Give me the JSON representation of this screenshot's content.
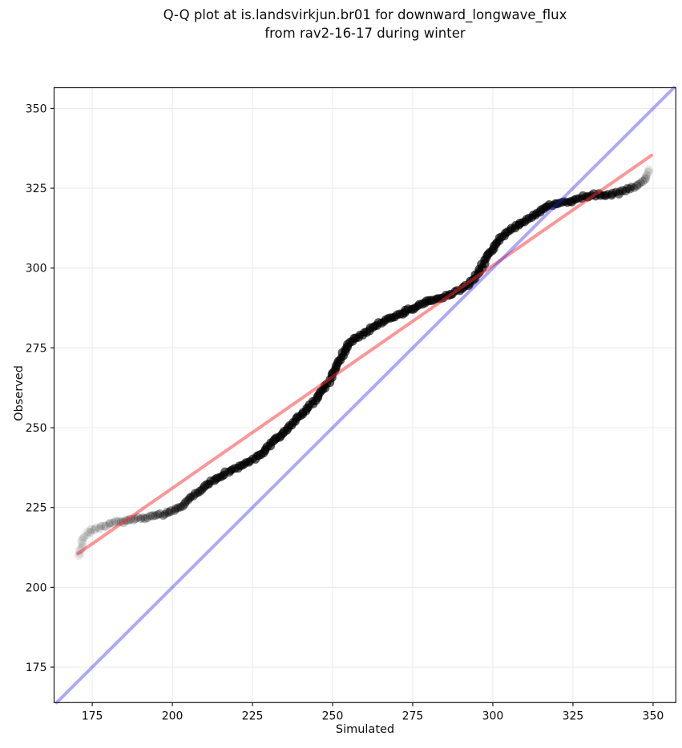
{
  "figure": {
    "title_line1": "Q-Q plot at is.landsvirkjun.br01 for downward_longwave_flux",
    "title_line2": "from rav2-16-17 during winter"
  },
  "chart_data": {
    "type": "scatter",
    "title": "Q-Q plot at is.landsvirkjun.br01 for downward_longwave_flux from rav2-16-17 during winter",
    "xlabel": "Simulated",
    "ylabel": "Observed",
    "xlim": [
      163.1,
      357.1
    ],
    "ylim": [
      163.9,
      356.5
    ],
    "xticks": [
      175,
      200,
      225,
      250,
      275,
      300,
      325,
      350
    ],
    "yticks": [
      175,
      200,
      225,
      250,
      275,
      300,
      325,
      350
    ],
    "grid": true,
    "legend": "none",
    "series": [
      {
        "name": "quantile-points",
        "type": "scatter",
        "marker": "circle",
        "color": "#000000",
        "alpha_profile": [
          [
            0,
            0.07
          ],
          [
            0.03,
            0.1
          ],
          [
            0.07,
            0.16
          ],
          [
            0.12,
            0.28
          ],
          [
            0.17,
            0.45
          ],
          [
            0.22,
            0.58
          ],
          [
            0.3,
            0.64
          ],
          [
            0.85,
            0.64
          ],
          [
            0.93,
            0.6
          ],
          [
            0.962,
            0.45
          ],
          [
            0.978,
            0.28
          ],
          [
            0.99,
            0.16
          ],
          [
            1,
            0.1
          ]
        ],
        "points": [
          [
            170.7,
            210.0
          ],
          [
            171.5,
            212.0
          ],
          [
            172.0,
            214.0
          ],
          [
            172.8,
            216.0
          ],
          [
            174.0,
            217.3
          ],
          [
            175.5,
            218.0
          ],
          [
            177.5,
            218.9
          ],
          [
            180.0,
            219.7
          ],
          [
            183.0,
            220.4
          ],
          [
            186.5,
            221.1
          ],
          [
            190.0,
            221.7
          ],
          [
            194.0,
            222.2
          ],
          [
            197.5,
            222.9
          ],
          [
            200.0,
            223.7
          ],
          [
            202.5,
            225.3
          ],
          [
            205.0,
            227.2
          ],
          [
            208.0,
            230.0
          ],
          [
            212.0,
            233.0
          ],
          [
            216.0,
            235.5
          ],
          [
            220.0,
            237.3
          ],
          [
            224.5,
            239.6
          ],
          [
            228.0,
            242.0
          ],
          [
            231.0,
            245.0
          ],
          [
            234.0,
            248.0
          ],
          [
            237.5,
            251.5
          ],
          [
            241.5,
            255.5
          ],
          [
            244.5,
            258.5
          ],
          [
            247.0,
            262.0
          ],
          [
            249.5,
            265.5
          ],
          [
            251.5,
            269.5
          ],
          [
            253.5,
            273.5
          ],
          [
            255.5,
            276.5
          ],
          [
            258.0,
            278.5
          ],
          [
            261.0,
            280.3
          ],
          [
            266.0,
            283.6
          ],
          [
            271.0,
            285.7
          ],
          [
            276.0,
            287.8
          ],
          [
            281.0,
            289.9
          ],
          [
            286.0,
            291.5
          ],
          [
            290.0,
            293.2
          ],
          [
            292.5,
            295.0
          ],
          [
            294.5,
            297.5
          ],
          [
            296.5,
            300.5
          ],
          [
            298.5,
            304.0
          ],
          [
            300.5,
            307.0
          ],
          [
            302.5,
            309.3
          ],
          [
            305.0,
            311.5
          ],
          [
            308.0,
            313.6
          ],
          [
            311.0,
            315.5
          ],
          [
            314.0,
            317.2
          ],
          [
            316.5,
            319.0
          ],
          [
            319.0,
            319.9
          ],
          [
            321.5,
            320.3
          ],
          [
            325.0,
            321.2
          ],
          [
            328.5,
            322.4
          ],
          [
            331.5,
            322.8
          ],
          [
            334.0,
            322.9
          ],
          [
            337.5,
            323.2
          ],
          [
            341.0,
            324.1
          ],
          [
            343.5,
            325.3
          ],
          [
            345.5,
            326.2
          ],
          [
            346.8,
            327.3
          ],
          [
            347.8,
            329.0
          ],
          [
            348.3,
            330.8
          ]
        ]
      },
      {
        "name": "fit-line",
        "type": "line",
        "color": "rgba(250,45,50,0.50)",
        "x": [
          170.5,
          349.5
        ],
        "y": [
          210.5,
          335.3
        ]
      },
      {
        "name": "identity-line",
        "type": "line",
        "color": "rgba(40,30,240,0.38)",
        "x": [
          163.9,
          356.5
        ],
        "y": [
          163.9,
          356.5
        ]
      }
    ],
    "style": {
      "dot_color": "#000000",
      "fit_line_color": "rgba(250,45,50,0.50)",
      "identity_line_color": "rgba(40,30,240,0.38)",
      "grid_color": "#ececec",
      "frame_color": "#1a1a1a",
      "background": "#ffffff"
    }
  }
}
